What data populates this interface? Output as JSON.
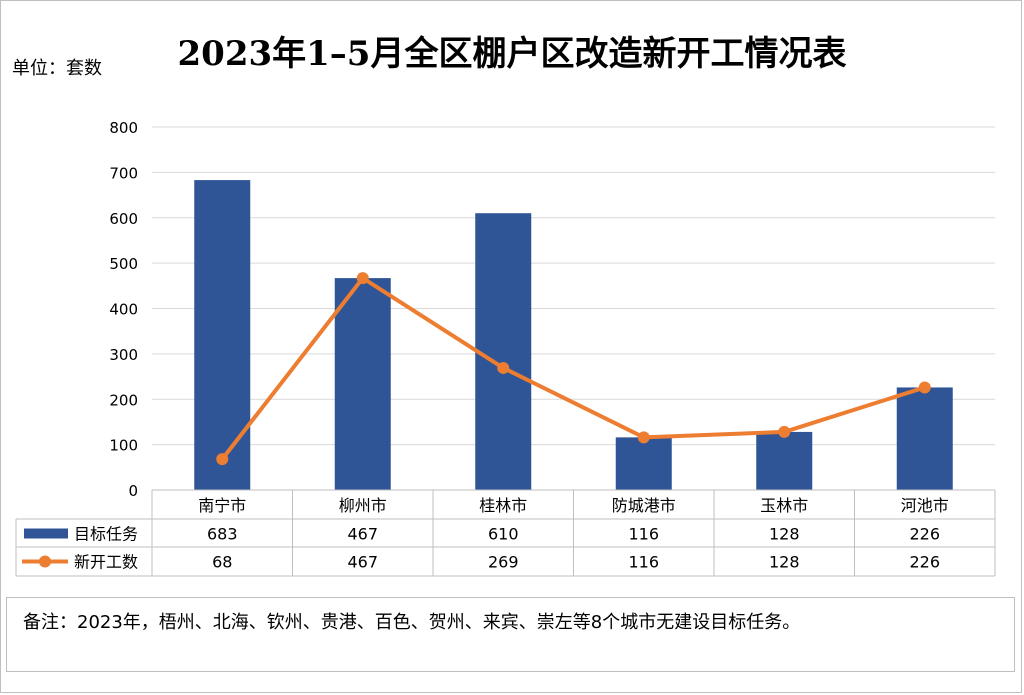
{
  "title": "2023年1–5月全区棚户区改造新开工情况表",
  "unit_label": "单位：套数",
  "note": "备注：2023年，梧州、北海、钦州、贵港、百色、贺州、来宾、崇左等8个城市无建设目标任务。",
  "chart_data": {
    "type": "bar+line",
    "categories": [
      "南宁市",
      "柳州市",
      "桂林市",
      "防城港市",
      "玉林市",
      "河池市"
    ],
    "series": [
      {
        "name": "目标任务",
        "type": "bar",
        "color": "#2f5597",
        "values": [
          683,
          467,
          610,
          116,
          128,
          226
        ]
      },
      {
        "name": "新开工数",
        "type": "line",
        "color": "#ed7d31",
        "values": [
          68,
          467,
          269,
          116,
          128,
          226
        ]
      }
    ],
    "yticks": [
      0,
      100,
      200,
      300,
      400,
      500,
      600,
      700,
      800
    ],
    "ylim": [
      0,
      800
    ],
    "grid": true,
    "legend": "data-table-left",
    "data_table": true
  }
}
